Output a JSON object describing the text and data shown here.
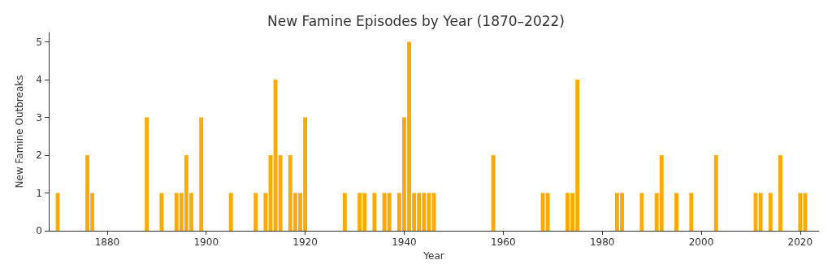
{
  "chart_data": {
    "type": "bar",
    "title": "New Famine Episodes by Year (1870–2022)",
    "xlabel": "Year",
    "ylabel": "New Famine Outbreaks",
    "x": [
      1870,
      1876,
      1877,
      1888,
      1891,
      1894,
      1895,
      1896,
      1897,
      1899,
      1905,
      1910,
      1912,
      1913,
      1914,
      1915,
      1917,
      1918,
      1919,
      1920,
      1928,
      1931,
      1932,
      1934,
      1936,
      1937,
      1939,
      1940,
      1941,
      1942,
      1943,
      1944,
      1945,
      1946,
      1958,
      1968,
      1969,
      1973,
      1974,
      1975,
      1983,
      1984,
      1988,
      1991,
      1992,
      1995,
      1998,
      2003,
      2011,
      2012,
      2014,
      2016,
      2020,
      2021
    ],
    "values": [
      1,
      2,
      1,
      3,
      1,
      1,
      1,
      2,
      1,
      3,
      1,
      1,
      1,
      2,
      4,
      2,
      2,
      1,
      1,
      3,
      1,
      1,
      1,
      1,
      1,
      1,
      1,
      3,
      5,
      1,
      1,
      1,
      1,
      1,
      2,
      1,
      1,
      1,
      1,
      4,
      1,
      1,
      1,
      1,
      2,
      1,
      1,
      2,
      1,
      1,
      1,
      2,
      1,
      1
    ],
    "color": "#ffaa00",
    "xlim": [
      1868.2,
      2023.8
    ],
    "xticks": [
      1880,
      1900,
      1920,
      1940,
      1960,
      1980,
      2000,
      2020
    ],
    "ylim": [
      0,
      5.25
    ],
    "yticks": [
      0,
      1,
      2,
      3,
      4,
      5
    ],
    "grid": false
  }
}
